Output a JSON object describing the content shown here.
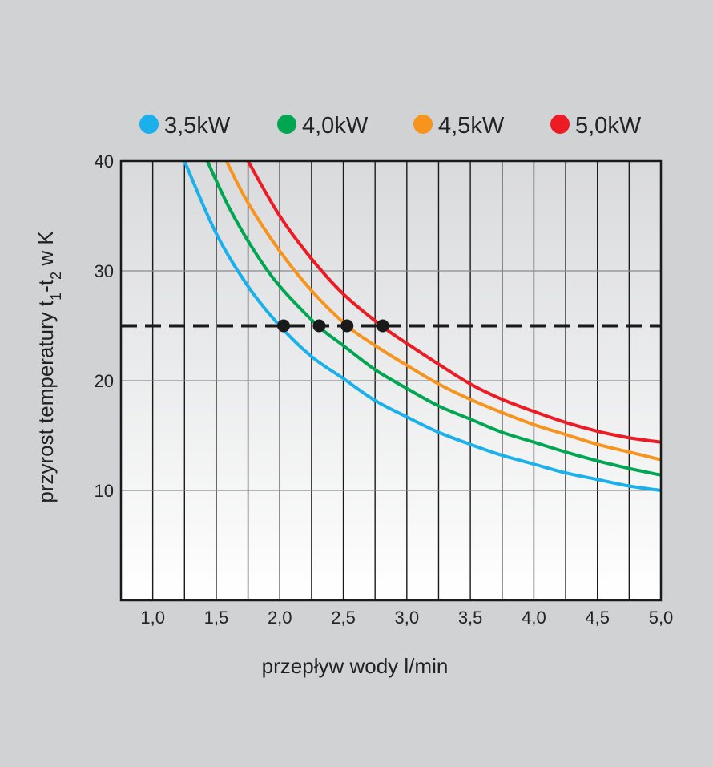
{
  "chart_data": {
    "type": "line",
    "xlabel": "przepływ wody l/min",
    "ylabel": {
      "parts": [
        {
          "text": "przyrost temperatury t"
        },
        {
          "text": "1",
          "sub": true
        },
        {
          "text": "-t"
        },
        {
          "text": "2",
          "sub": true
        },
        {
          "text": " w K"
        }
      ]
    },
    "xlim": [
      0.75,
      5.0
    ],
    "ylim": [
      0,
      40
    ],
    "x_ticks": [
      1.0,
      1.5,
      2.0,
      2.5,
      3.0,
      3.5,
      4.0,
      4.5,
      5.0
    ],
    "x_tick_labels": [
      "1,0",
      "1,5",
      "2,0",
      "2,5",
      "3,0",
      "3,5",
      "4,0",
      "4,5",
      "5,0"
    ],
    "y_ticks": [
      10,
      20,
      30,
      40
    ],
    "y_tick_labels": [
      "10",
      "20",
      "30",
      "40"
    ],
    "grid": "vertical every 0.25, horizontal every 10",
    "legend_position": "top",
    "reference_line": {
      "y": 25,
      "style": "dashed",
      "color": "#1a1a1a"
    },
    "series": [
      {
        "name": "3,5kW",
        "color": "#1ab0ec",
        "points": [
          [
            1.25,
            40
          ],
          [
            1.5,
            33.4
          ],
          [
            1.75,
            28.6
          ],
          [
            2.0,
            25.0
          ],
          [
            2.25,
            22.2
          ],
          [
            2.5,
            20.2
          ],
          [
            2.75,
            18.2
          ],
          [
            3.0,
            16.7
          ],
          [
            3.25,
            15.3
          ],
          [
            3.5,
            14.2
          ],
          [
            3.75,
            13.2
          ],
          [
            4.0,
            12.4
          ],
          [
            4.25,
            11.6
          ],
          [
            4.5,
            11.0
          ],
          [
            4.75,
            10.4
          ],
          [
            5.0,
            10.0
          ]
        ]
      },
      {
        "name": "4,0kW",
        "color": "#00a651",
        "points": [
          [
            1.43,
            40
          ],
          [
            1.6,
            35.8
          ],
          [
            1.8,
            31.8
          ],
          [
            2.0,
            28.6
          ],
          [
            2.3,
            25.0
          ],
          [
            2.5,
            23.2
          ],
          [
            2.75,
            21.0
          ],
          [
            3.0,
            19.3
          ],
          [
            3.25,
            17.7
          ],
          [
            3.5,
            16.5
          ],
          [
            3.75,
            15.3
          ],
          [
            4.0,
            14.4
          ],
          [
            4.25,
            13.5
          ],
          [
            4.5,
            12.7
          ],
          [
            4.75,
            12.0
          ],
          [
            5.0,
            11.4
          ]
        ]
      },
      {
        "name": "4,5kW",
        "color": "#f7941d",
        "points": [
          [
            1.58,
            40
          ],
          [
            1.75,
            36.2
          ],
          [
            2.0,
            31.8
          ],
          [
            2.25,
            28.2
          ],
          [
            2.53,
            25.0
          ],
          [
            2.75,
            23.2
          ],
          [
            3.0,
            21.4
          ],
          [
            3.25,
            19.7
          ],
          [
            3.5,
            18.3
          ],
          [
            3.75,
            17.1
          ],
          [
            4.0,
            16.0
          ],
          [
            4.25,
            15.1
          ],
          [
            4.5,
            14.2
          ],
          [
            4.75,
            13.5
          ],
          [
            5.0,
            12.8
          ]
        ]
      },
      {
        "name": "5,0kW",
        "color": "#ed1c24",
        "points": [
          [
            1.75,
            40
          ],
          [
            2.0,
            35.0
          ],
          [
            2.25,
            31.1
          ],
          [
            2.5,
            27.9
          ],
          [
            2.8,
            25.0
          ],
          [
            3.0,
            23.4
          ],
          [
            3.25,
            21.5
          ],
          [
            3.5,
            19.7
          ],
          [
            3.75,
            18.3
          ],
          [
            4.0,
            17.2
          ],
          [
            4.25,
            16.2
          ],
          [
            4.5,
            15.4
          ],
          [
            4.75,
            14.8
          ],
          [
            5.0,
            14.4
          ]
        ]
      }
    ],
    "markers": [
      {
        "x": 2.03,
        "y": 25
      },
      {
        "x": 2.31,
        "y": 25
      },
      {
        "x": 2.53,
        "y": 25
      },
      {
        "x": 2.81,
        "y": 25
      }
    ]
  }
}
